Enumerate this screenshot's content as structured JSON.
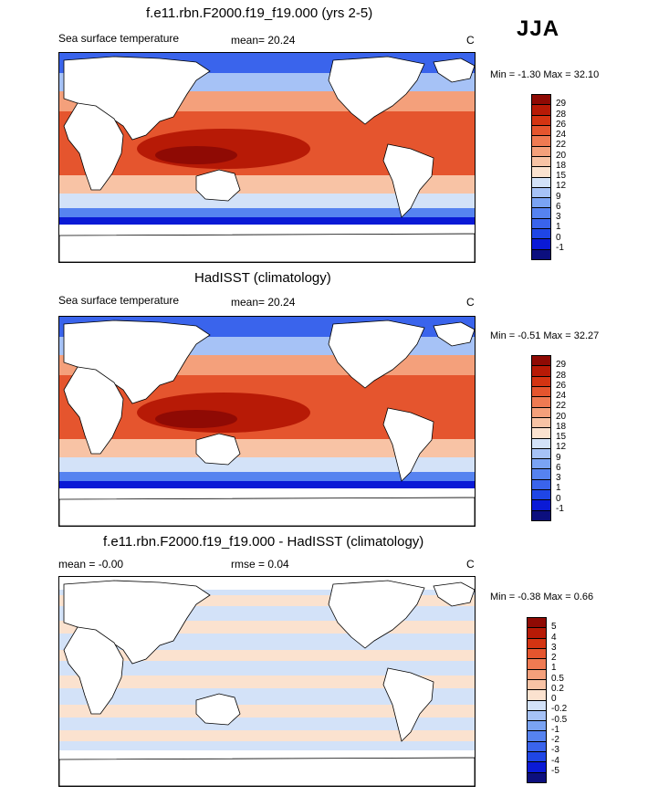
{
  "season": "JJA",
  "colors": {
    "sst_levels": [
      "#0c0f7e",
      "#0a1ad6",
      "#1f46e6",
      "#3a64ec",
      "#5683f0",
      "#7aa3f3",
      "#a6c2f6",
      "#d3e2f8",
      "#fbe2cf",
      "#f8c3a5",
      "#f4a07b",
      "#ef7a52",
      "#e5552e",
      "#d43412",
      "#b71a06",
      "#8f0a04"
    ],
    "diff_levels": [
      "#0c0f7e",
      "#0a1ad6",
      "#1f46e6",
      "#3a64ec",
      "#5683f0",
      "#7aa3f3",
      "#a6c2f6",
      "#d3e2f8",
      "#fbe2cf",
      "#f8c3a5",
      "#f4a07b",
      "#ef7a52",
      "#e5552e",
      "#d43412",
      "#b71a06",
      "#8f0a04"
    ]
  },
  "panels": [
    {
      "title": "f.e11.rbn.F2000.f19_f19.000 (yrs 2-5)",
      "variable": "Sea surface temperature",
      "mean_text": "mean=  20.24",
      "rmse_text": "",
      "units": "C",
      "minmax": "Min =  -1.30 Max =  32.10",
      "colorbar_labels": [
        "29",
        "28",
        "26",
        "24",
        "22",
        "20",
        "18",
        "15",
        "12",
        "9",
        "6",
        "3",
        "1",
        "0",
        "-1"
      ]
    },
    {
      "title": "HadISST (climatology)",
      "variable": "Sea surface temperature",
      "mean_text": "mean=  20.24",
      "rmse_text": "",
      "units": "C",
      "minmax": "Min =  -0.51 Max =  32.27",
      "colorbar_labels": [
        "29",
        "28",
        "26",
        "24",
        "22",
        "20",
        "18",
        "15",
        "12",
        "9",
        "6",
        "3",
        "1",
        "0",
        "-1"
      ]
    },
    {
      "title": "f.e11.rbn.F2000.f19_f19.000 - HadISST (climatology)",
      "variable": "",
      "mean_text": "mean =  -0.00",
      "rmse_text": "rmse =   0.04",
      "units": "C",
      "minmax": "Min =  -0.38 Max =   0.66",
      "colorbar_labels": [
        "5",
        "4",
        "3",
        "2",
        "1",
        "0.5",
        "0.2",
        "0",
        "-0.2",
        "-0.5",
        "-1",
        "-2",
        "-3",
        "-4",
        "-5"
      ]
    }
  ],
  "chart_data": [
    {
      "type": "heatmap",
      "title": "f.e11.rbn.F2000.f19_f19.000 (yrs 2-5)",
      "subtitle": "Sea surface temperature",
      "mean": 20.24,
      "units": "C",
      "min": -1.3,
      "max": 32.1,
      "levels": [
        -1,
        0,
        1,
        3,
        6,
        9,
        12,
        15,
        18,
        20,
        22,
        24,
        26,
        28,
        29
      ]
    },
    {
      "type": "heatmap",
      "title": "HadISST (climatology)",
      "subtitle": "Sea surface temperature",
      "mean": 20.24,
      "units": "C",
      "min": -0.51,
      "max": 32.27,
      "levels": [
        -1,
        0,
        1,
        3,
        6,
        9,
        12,
        15,
        18,
        20,
        22,
        24,
        26,
        28,
        29
      ]
    },
    {
      "type": "heatmap",
      "title": "f.e11.rbn.F2000.f19_f19.000 - HadISST (climatology)",
      "mean": -0.0,
      "rmse": 0.04,
      "units": "C",
      "min": -0.38,
      "max": 0.66,
      "levels": [
        -5,
        -4,
        -3,
        -2,
        -1,
        -0.5,
        -0.2,
        0,
        0.2,
        0.5,
        1,
        2,
        3,
        4,
        5
      ]
    }
  ]
}
